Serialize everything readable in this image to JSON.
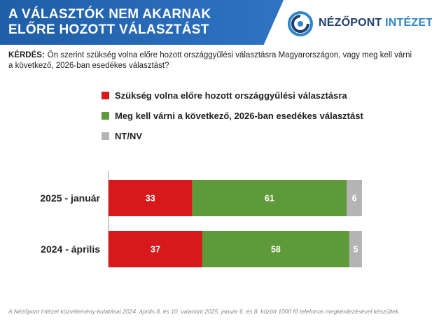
{
  "header": {
    "title_line1": "A VÁLASZTÓK NEM AKARNAK",
    "title_line2": "ELŐRE HOZOTT VÁLASZTÁST"
  },
  "logo": {
    "name_part1": "NÉZŐPONT",
    "name_part2": "INTÉZET",
    "icon": "nezopont-logo-icon"
  },
  "question": {
    "label": "KÉRDÉS:",
    "text": "Ön szerint szükség volna előre hozott országgyűlési választásra Magyarországon, vagy meg kell várni a következő, 2026-ban esedékes választást?"
  },
  "legend": [
    {
      "label": "Szükség volna előre hozott országgyűlési választásra",
      "color": "#d7191c"
    },
    {
      "label": "Meg kell várni a következő, 2026-ban esedékes választást",
      "color": "#5f9a3a"
    },
    {
      "label": "NT/NV",
      "color": "#b4b4b4"
    }
  ],
  "chart_data": {
    "type": "bar",
    "orientation": "horizontal",
    "stacked": true,
    "categories": [
      "2025 - január",
      "2024 - április"
    ],
    "series": [
      {
        "name": "Szükség volna előre hozott országgyűlési választásra",
        "values": [
          33,
          37
        ],
        "color": "#d7191c"
      },
      {
        "name": "Meg kell várni a következő, 2026-ban esedékes választást",
        "values": [
          61,
          58
        ],
        "color": "#5f9a3a"
      },
      {
        "name": "NT/NV",
        "values": [
          6,
          5
        ],
        "color": "#b4b4b4"
      }
    ],
    "xlim": [
      0,
      100
    ],
    "title": "",
    "xlabel": "",
    "ylabel": "",
    "grid": false,
    "legend_position": "top"
  },
  "footnote": "A Nézőpont Intézet közvélemény-kutatásai 2024. április 8. és 10. valamint 2025. január 6. és 8. között 1000 fő telefonos megkérdezésével készültek."
}
